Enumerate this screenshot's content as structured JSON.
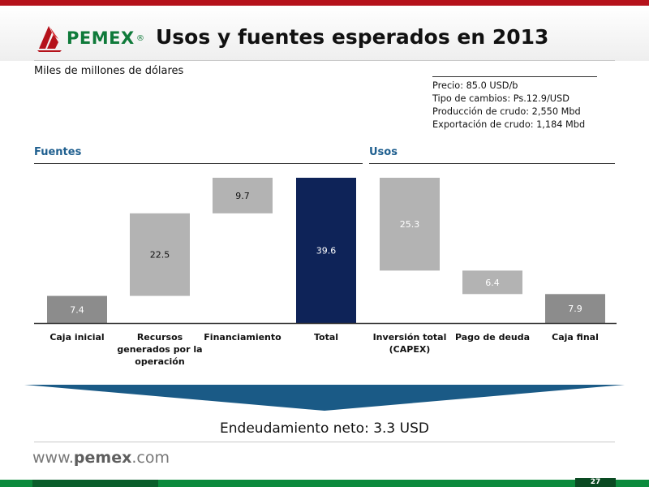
{
  "header": {
    "logo_text": "PEMEX",
    "logo_reg": "®",
    "title": "Usos y fuentes esperados en 2013",
    "subtitle": "Miles de millones de dólares"
  },
  "assumptions": [
    "Precio: 85.0 USD/b",
    "Tipo de cambios: Ps.12.9/USD",
    "Producción de crudo: 2,550 Mbd",
    "Exportación de crudo: 1,184 Mbd"
  ],
  "sections": {
    "sources": "Fuentes",
    "uses": "Usos"
  },
  "colors": {
    "light_bar": "#b3b3b3",
    "dark_gray_bar": "#8c8c8c",
    "navy_bar": "#0e2358",
    "section_blue": "#1f5f8f",
    "banner_blue": "#1a5a86",
    "brand_green": "#0f7a3a",
    "brand_red": "#b5121b"
  },
  "chart_data": {
    "type": "bar",
    "subtype": "waterfall",
    "categories": [
      "Caja inicial",
      "Recursos generados por la operación",
      "Financiamiento",
      "Total",
      "Inversión total (CAPEX)",
      "Pago de deuda",
      "Caja final"
    ],
    "values": [
      7.4,
      22.5,
      9.7,
      39.6,
      25.3,
      6.4,
      7.9
    ],
    "floating": [
      [
        0,
        7.4
      ],
      [
        7.4,
        29.9
      ],
      [
        29.9,
        39.6
      ],
      [
        0,
        39.6
      ],
      [
        14.3,
        39.6
      ],
      [
        7.9,
        14.3
      ],
      [
        0,
        7.9
      ]
    ],
    "bar_styles": [
      "dark",
      "light",
      "light",
      "navy",
      "light",
      "light",
      "dark"
    ],
    "label_colors": [
      "white",
      "black",
      "black",
      "white",
      "white",
      "white",
      "white"
    ],
    "ylim": [
      0,
      39.6
    ],
    "title": "",
    "xlabel": "",
    "ylabel": "",
    "grid": false
  },
  "footer": {
    "net_debt": "Endeudamiento neto: 3.3 USD",
    "url_prefix": "www.",
    "url_brand": "pemex",
    "url_suffix": ".com",
    "page_number": "27"
  }
}
